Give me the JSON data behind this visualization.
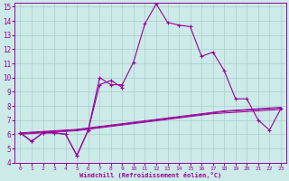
{
  "x": [
    0,
    1,
    2,
    3,
    4,
    5,
    6,
    7,
    8,
    9,
    10,
    11,
    12,
    13,
    14,
    15,
    16,
    17,
    18,
    19,
    20,
    21,
    22,
    23
  ],
  "line_main": [
    6.1,
    5.5,
    6.1,
    6.1,
    6.0,
    4.5,
    6.3,
    10.0,
    9.5,
    9.5,
    11.1,
    13.8,
    15.2,
    13.9,
    13.7,
    13.6,
    11.5,
    11.8,
    10.5,
    8.5,
    8.5,
    7.0,
    6.3,
    7.8
  ],
  "line_secondary": [
    6.1,
    5.5,
    6.1,
    6.1,
    6.0,
    4.5,
    6.3,
    9.5,
    9.8,
    9.3,
    11.1,
    13.8,
    15.2,
    13.9,
    13.7,
    13.6,
    11.5,
    11.8,
    10.5,
    8.5,
    8.5,
    7.0,
    6.3,
    7.8
  ],
  "line_trend1": [
    6.0,
    6.05,
    6.1,
    6.15,
    6.2,
    6.25,
    6.35,
    6.45,
    6.55,
    6.65,
    6.75,
    6.85,
    6.95,
    7.05,
    7.15,
    7.25,
    7.35,
    7.45,
    7.5,
    7.55,
    7.6,
    7.65,
    7.7,
    7.75
  ],
  "line_trend2": [
    6.05,
    6.1,
    6.15,
    6.2,
    6.25,
    6.3,
    6.4,
    6.5,
    6.6,
    6.7,
    6.8,
    6.9,
    7.0,
    7.1,
    7.2,
    7.3,
    7.4,
    7.5,
    7.6,
    7.65,
    7.7,
    7.75,
    7.8,
    7.85
  ],
  "line_trend3": [
    6.1,
    6.15,
    6.2,
    6.25,
    6.3,
    6.35,
    6.45,
    6.55,
    6.65,
    6.75,
    6.85,
    6.95,
    7.05,
    7.15,
    7.25,
    7.35,
    7.45,
    7.55,
    7.65,
    7.7,
    7.75,
    7.8,
    7.85,
    7.9
  ],
  "color": "#990099",
  "bg_color": "#cceae8",
  "grid_color": "#aacccc",
  "xlabel": "Windchill (Refroidissement éolien,°C)",
  "ylim": [
    4,
    15
  ],
  "xlim": [
    -0.5,
    23.5
  ],
  "yticks": [
    4,
    5,
    6,
    7,
    8,
    9,
    10,
    11,
    12,
    13,
    14,
    15
  ],
  "xticks": [
    0,
    1,
    2,
    3,
    4,
    5,
    6,
    7,
    8,
    9,
    10,
    11,
    12,
    13,
    14,
    15,
    16,
    17,
    18,
    19,
    20,
    21,
    22,
    23
  ]
}
